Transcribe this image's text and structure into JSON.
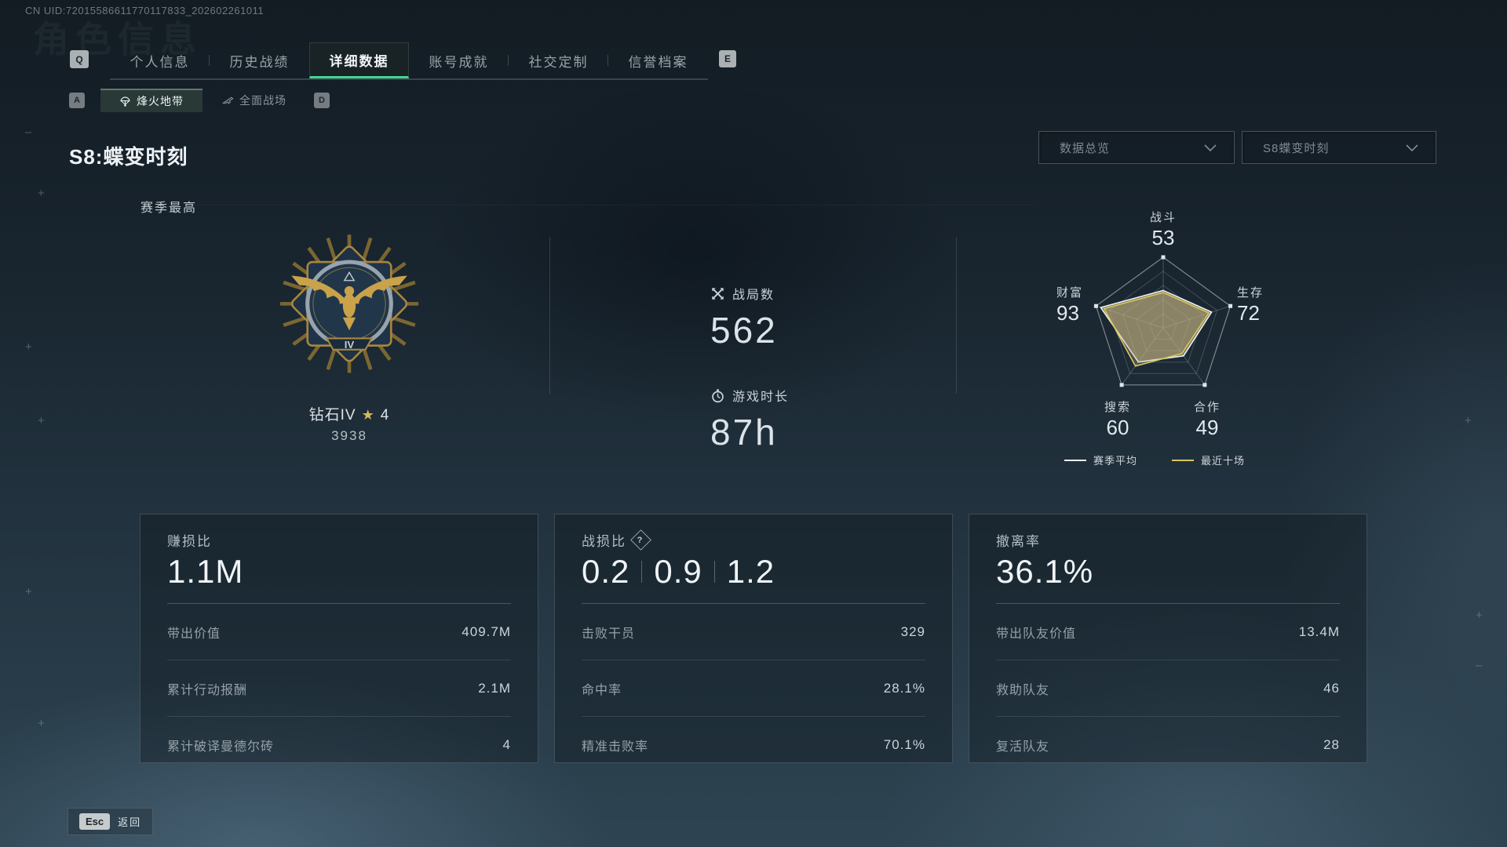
{
  "header": {
    "uid": "CN UID:72015586611770117833_202602261011",
    "ghost_title": "角色信息"
  },
  "nav": {
    "key_hint_left": "Q",
    "key_hint_right": "E",
    "tabs": [
      {
        "label": "个人信息"
      },
      {
        "label": "历史战绩"
      },
      {
        "label": "详细数据"
      },
      {
        "label": "账号成就"
      },
      {
        "label": "社交定制"
      },
      {
        "label": "信誉档案"
      }
    ],
    "active_tab": "详细数据"
  },
  "subnav": {
    "key_hint_left": "A",
    "key_hint_right": "D",
    "items": [
      {
        "label": "烽火地带",
        "icon": "parachute-icon",
        "active": true
      },
      {
        "label": "全面战场",
        "icon": "rifle-icon",
        "active": false
      }
    ]
  },
  "season": {
    "title": "S8:蝶变时刻",
    "filter_data_overview": "数据总览",
    "filter_season": "S8蝶变时刻",
    "season_best_label": "赛季最高",
    "rank": {
      "tier_label": "钻石IV",
      "tier_numeral": "IV",
      "star_icon": "★",
      "star_count": "4",
      "points": "3938"
    },
    "matches": {
      "label": "战局数",
      "value": "562",
      "icon": "crossed-swords-icon"
    },
    "playtime": {
      "label": "游戏时长",
      "value": "87h",
      "icon": "stopwatch-icon"
    }
  },
  "chart_data": {
    "type": "radar",
    "axes": [
      {
        "label": "战斗",
        "value": 53
      },
      {
        "label": "生存",
        "value": 72
      },
      {
        "label": "合作",
        "value": 49
      },
      {
        "label": "搜索",
        "value": 60
      },
      {
        "label": "财富",
        "value": 93
      }
    ],
    "range": [
      0,
      100
    ],
    "grid_rings": 5,
    "legend_position": "bottom",
    "series": [
      {
        "name": "赛季平均",
        "color": "#edf1f3",
        "fill": "rgba(201,183,131,0.50)",
        "values": [
          53,
          72,
          49,
          60,
          93
        ]
      },
      {
        "name": "最近十场",
        "color": "#d9c75f",
        "fill": "rgba(201,183,131,0.28)",
        "values": [
          50,
          68,
          45,
          67,
          88
        ]
      }
    ]
  },
  "cards": [
    {
      "title": "赚损比",
      "value": "1.1M",
      "rows": [
        {
          "label": "带出价值",
          "value": "409.7M"
        },
        {
          "label": "累计行动报酬",
          "value": "2.1M"
        },
        {
          "label": "累计破译曼德尔砖",
          "value": "4"
        }
      ]
    },
    {
      "title": "战损比",
      "help_icon": "?",
      "values": [
        "0.2",
        "0.9",
        "1.2"
      ],
      "rows": [
        {
          "label": "击败干员",
          "value": "329"
        },
        {
          "label": "命中率",
          "value": "28.1%"
        },
        {
          "label": "精准击败率",
          "value": "70.1%"
        }
      ]
    },
    {
      "title": "撤离率",
      "value": "36.1%",
      "rows": [
        {
          "label": "带出队友价值",
          "value": "13.4M"
        },
        {
          "label": "救助队友",
          "value": "46"
        },
        {
          "label": "复活队友",
          "value": "28"
        }
      ]
    }
  ],
  "footer": {
    "esc_key": "Esc",
    "back_label": "返回"
  },
  "colors": {
    "accent_green": "#43d596",
    "radar_yellow": "#d9c75f",
    "badge_gold": "#c9a24a"
  }
}
